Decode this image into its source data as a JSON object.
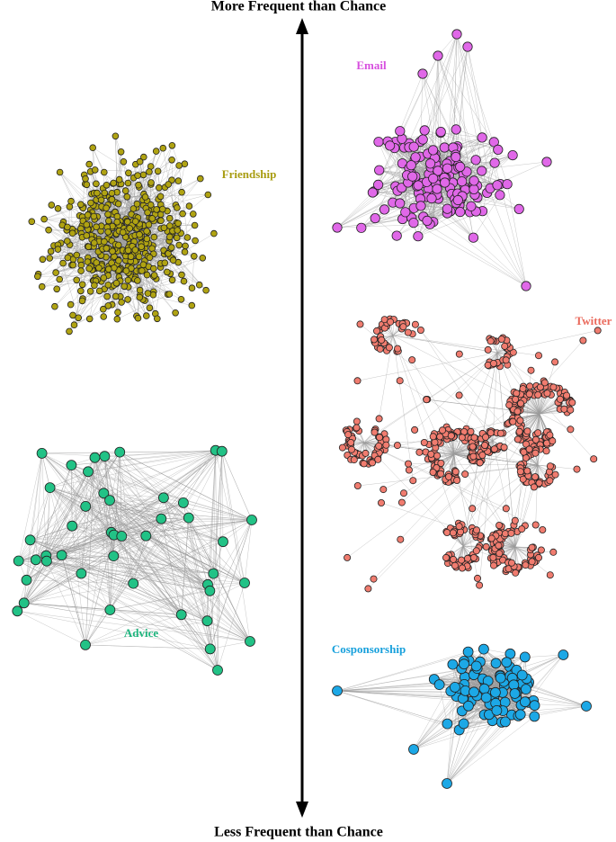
{
  "axis": {
    "top_label": "More Frequent than Chance",
    "bottom_label": "Less Frequent than Chance"
  },
  "networks": [
    {
      "label": "Friendship"
    },
    {
      "label": "Email"
    },
    {
      "label": "Twitter"
    },
    {
      "label": "Advice"
    },
    {
      "label": "Cosponsorship"
    }
  ]
}
